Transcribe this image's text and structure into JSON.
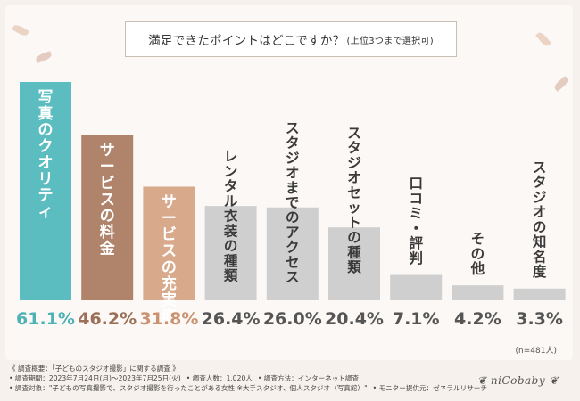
{
  "chart_data": {
    "type": "bar",
    "title": "満足できたポイントはどこですか？",
    "subtitle": "(上位3つまで選択可)",
    "categories": [
      "写真のクオリティ",
      "サービスの料金",
      "サービスの充実度",
      "レンタル衣装の種類",
      "スタジオまでのアクセス",
      "スタジオセットの種類",
      "口コミ・評判",
      "その他",
      "スタジオの知名度"
    ],
    "values": [
      61.1,
      46.2,
      31.8,
      26.4,
      26.0,
      20.4,
      7.1,
      4.2,
      3.3
    ],
    "value_labels": [
      "61.1%",
      "46.2%",
      "31.8%",
      "26.4%",
      "26.0%",
      "20.4%",
      "7.1%",
      "4.2%",
      "3.3%"
    ],
    "colors": [
      "#5bbdc0",
      "#b0846a",
      "#d9a98c",
      "#cfcfcf",
      "#cfcfcf",
      "#cfcfcf",
      "#cfcfcf",
      "#cfcfcf",
      "#cfcfcf"
    ],
    "label_colors": [
      "#4fb3b6",
      "#9c7058",
      "#c99271",
      "#555555",
      "#555555",
      "#555555",
      "#555555",
      "#555555",
      "#555555"
    ],
    "ylim": [
      0,
      61.1
    ],
    "grid": false,
    "note": "(n=481人)"
  },
  "footer": {
    "summary": "《 調査概要：「子どものスタジオ撮影」に関する調査 》",
    "period": "• 調査期間：2023年7月24日(月)～2023年7月25日(火)",
    "count": "• 調査人数：1,020人",
    "method": "• 調査方法：インターネット調査",
    "target": "• 調査対象：\"子どもの写真撮影で、スタジオ撮影を行ったことがある女性 ※大手スタジオ、個人スタジオ（写真館）\"",
    "provider": "• モニター提供元：ゼネラルリサーチ"
  },
  "logo": "❦ niCobaby ❦"
}
